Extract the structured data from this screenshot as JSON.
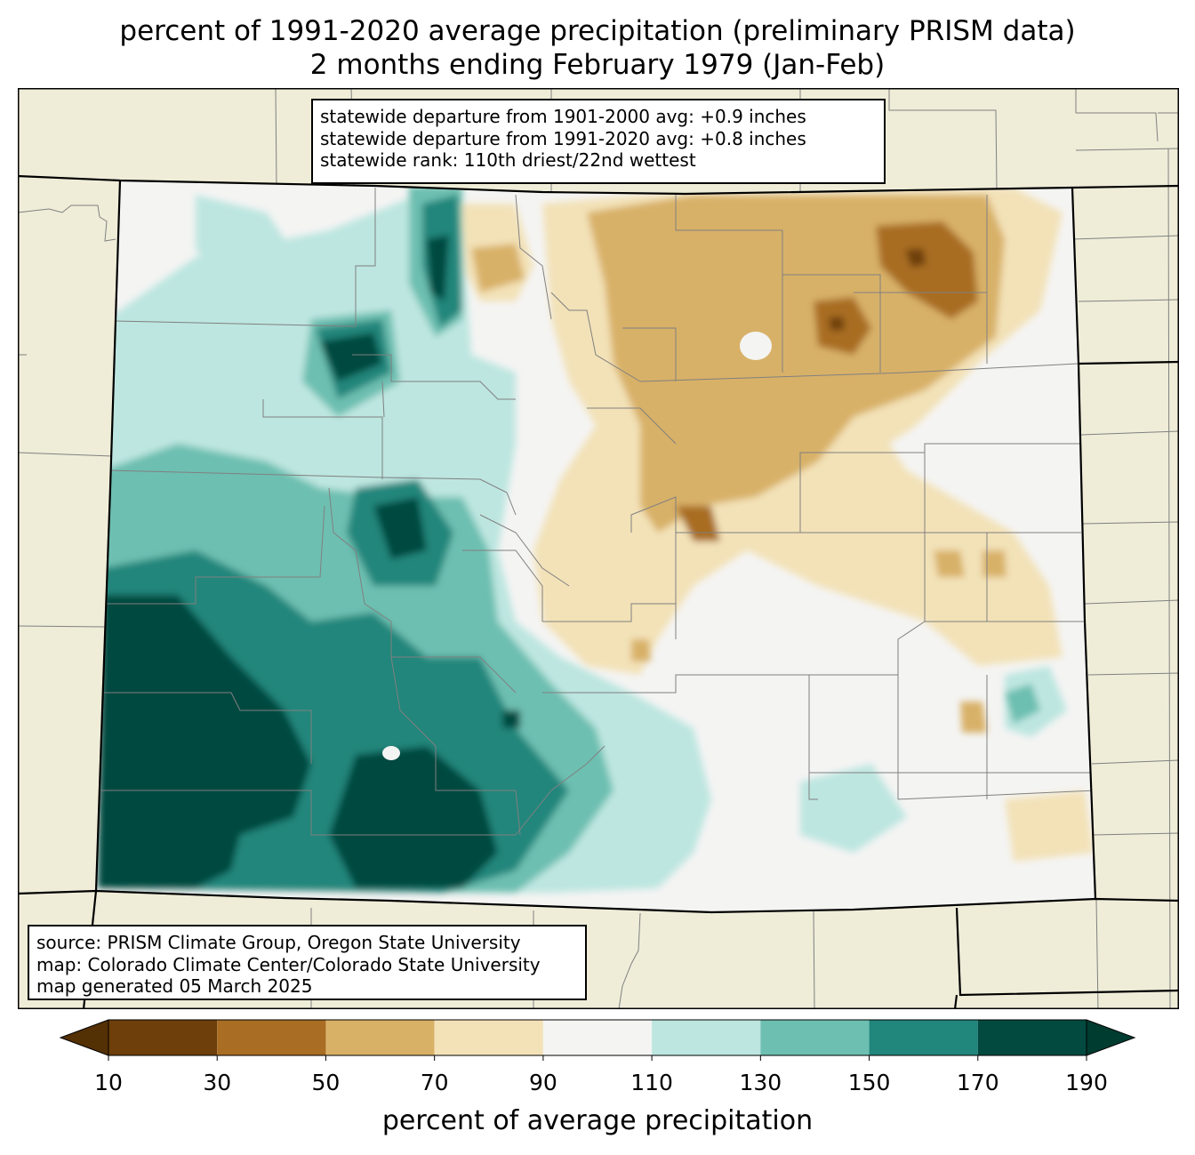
{
  "title": {
    "line1": "percent of 1991-2020 average precipitation (preliminary PRISM data)",
    "line2": "2 months ending February 1979 (Jan-Feb)"
  },
  "stats": {
    "line1": "statewide departure from 1901-2000 avg: +0.9 inches",
    "line2": "statewide departure from 1991-2020 avg: +0.8 inches",
    "line3": "statewide rank: 110th driest/22nd wettest"
  },
  "source": {
    "line1": "source: PRISM Climate Group, Oregon State University",
    "line2": "map: Colorado Climate Center/Colorado State University",
    "line3": "map generated 05 March 2025"
  },
  "colorbar": {
    "label": "percent of average precipitation",
    "ticks": [
      "10",
      "30",
      "50",
      "70",
      "90",
      "110",
      "130",
      "150",
      "170",
      "190"
    ],
    "under_color": "#543005",
    "over_color": "#003c30",
    "bins": [
      {
        "from": 10,
        "to": 30,
        "color": "#6e3f0a"
      },
      {
        "from": 30,
        "to": 50,
        "color": "#a96d24"
      },
      {
        "from": 50,
        "to": 70,
        "color": "#d8b167"
      },
      {
        "from": 70,
        "to": 90,
        "color": "#f3e2b8"
      },
      {
        "from": 90,
        "to": 110,
        "color": "#f4f4f3"
      },
      {
        "from": 110,
        "to": 130,
        "color": "#bde6e0"
      },
      {
        "from": 130,
        "to": 150,
        "color": "#6dbfb1"
      },
      {
        "from": 150,
        "to": 170,
        "color": "#21867c"
      },
      {
        "from": 170,
        "to": 190,
        "color": "#024a40"
      }
    ]
  },
  "colors": {
    "land": "#efedd8",
    "county_lines": "#808080",
    "state_lines": "#000000"
  }
}
